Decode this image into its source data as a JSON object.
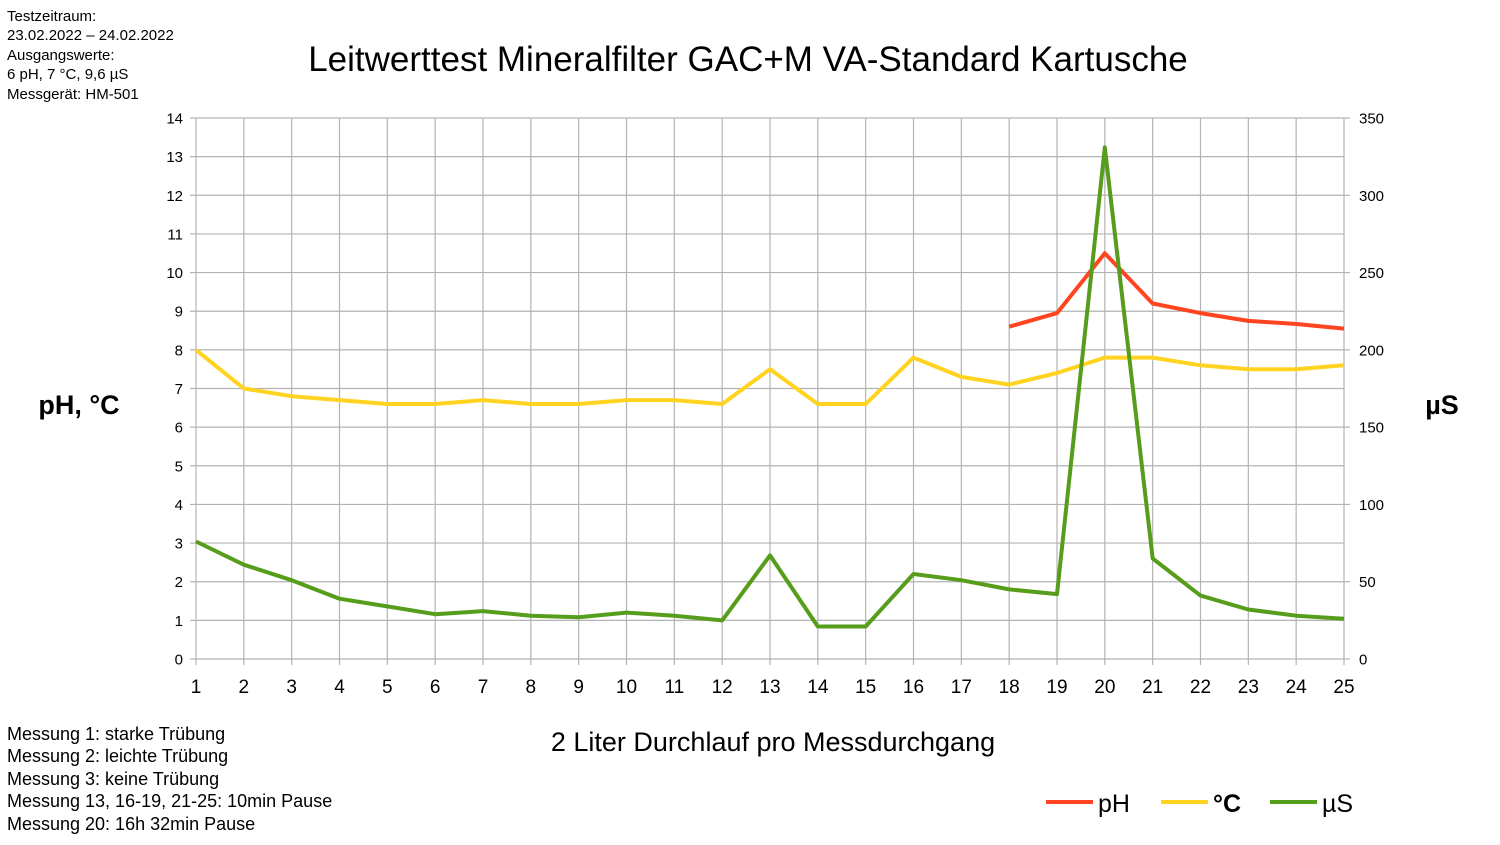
{
  "info_lines": [
    "Testzeitraum:",
    "23.02.2022 – 24.02.2022",
    "Ausgangswerte:",
    "6 pH, 7 °C, 9,6 µS",
    "Messgerät: HM-501"
  ],
  "notes": [
    "Messung 1: starke Trübung",
    "Messung 2: leichte Trübung",
    "Messung 3: keine Trübung",
    "Messung 13, 16-19, 21-25: 10min Pause",
    "Messung 20: 16h 32min Pause"
  ],
  "chart_data": {
    "type": "line",
    "title": "Leitwerttest Mineralfilter GAC+M VA-Standard Kartusche",
    "xlabel": "2 Liter Durchlauf pro Messdurchgang",
    "ylabel_left": "pH, °C",
    "ylabel_right": "µS",
    "categories": [
      "1",
      "2",
      "3",
      "4",
      "5",
      "6",
      "7",
      "8",
      "9",
      "10",
      "11",
      "12",
      "13",
      "14",
      "15",
      "16",
      "17",
      "18",
      "19",
      "20",
      "21",
      "22",
      "23",
      "24",
      "25"
    ],
    "ylim_left": [
      0,
      14
    ],
    "yticks_left": [
      "0",
      "1",
      "2",
      "3",
      "4",
      "5",
      "6",
      "7",
      "8",
      "9",
      "10",
      "11",
      "12",
      "13",
      "14"
    ],
    "ylim_right": [
      0,
      350
    ],
    "yticks_right": [
      "0",
      "50",
      "100",
      "150",
      "200",
      "250",
      "300",
      "350"
    ],
    "grid": true,
    "legend_position": "bottom-right",
    "series": [
      {
        "name": "pH",
        "axis": "left",
        "color": "#ff4420",
        "values": [
          null,
          null,
          null,
          null,
          null,
          null,
          null,
          null,
          null,
          null,
          null,
          null,
          null,
          null,
          null,
          null,
          null,
          8.6,
          8.95,
          10.5,
          9.2,
          8.95,
          8.75,
          8.67,
          8.55
        ]
      },
      {
        "name": "°C",
        "axis": "left",
        "color": "#ffd320",
        "values": [
          8.0,
          7.0,
          6.8,
          6.7,
          6.6,
          6.6,
          6.7,
          6.6,
          6.6,
          6.7,
          6.7,
          6.6,
          7.5,
          6.6,
          6.6,
          7.8,
          7.3,
          7.1,
          7.4,
          7.8,
          7.8,
          7.6,
          7.5,
          7.5,
          7.6
        ]
      },
      {
        "name": "µS",
        "axis": "right",
        "color": "#579d1c",
        "values": [
          76,
          61,
          51,
          39,
          34,
          29,
          31,
          28,
          27,
          30,
          28,
          25,
          67,
          21,
          21,
          55,
          51,
          45,
          42,
          331,
          65,
          41,
          32,
          28,
          26
        ]
      }
    ]
  }
}
